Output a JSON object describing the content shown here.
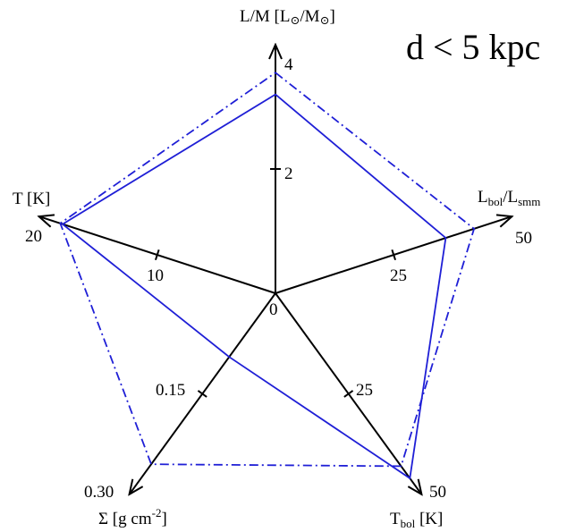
{
  "chart_data": {
    "type": "radar",
    "title": "d < 5 kpc",
    "center_label": "0",
    "axes": [
      {
        "key": "lm",
        "title": "L/M [L",
        "title_sym": "⊙",
        "title_mid": "/M",
        "title_sym2": "⊙",
        "title_end": "]",
        "max": 4,
        "max_label": "4",
        "ticks": [
          {
            "value": 2,
            "label": "2"
          }
        ]
      },
      {
        "key": "lbol",
        "title": "L",
        "sub1": "bol",
        "title_mid": "/L",
        "sub2": "smm",
        "max": 50,
        "max_label": "50",
        "ticks": [
          {
            "value": 25,
            "label": "25"
          }
        ]
      },
      {
        "key": "tbol",
        "title": "T",
        "sub1": "bol",
        "title_end": " [K]",
        "max": 50,
        "max_label": "50",
        "ticks": [
          {
            "value": 25,
            "label": "25"
          }
        ]
      },
      {
        "key": "sigma",
        "title": "Σ [g cm",
        "sup": "-2",
        "title_end": "]",
        "max": 0.3,
        "max_label": "0.30",
        "ticks": [
          {
            "value": 0.15,
            "label": "0.15"
          }
        ]
      },
      {
        "key": "temp",
        "title": "T [K]",
        "max": 20,
        "max_label": "20",
        "ticks": [
          {
            "value": 10,
            "label": "10"
          }
        ]
      }
    ],
    "series": [
      {
        "style": "solid",
        "color": "#1f1fd6",
        "values": [
          3.2,
          36,
          46,
          0.095,
          18
        ]
      },
      {
        "style": "dash-dot",
        "color": "#1f1fd6",
        "values": [
          3.55,
          42,
          43,
          0.255,
          18.2
        ]
      }
    ]
  }
}
